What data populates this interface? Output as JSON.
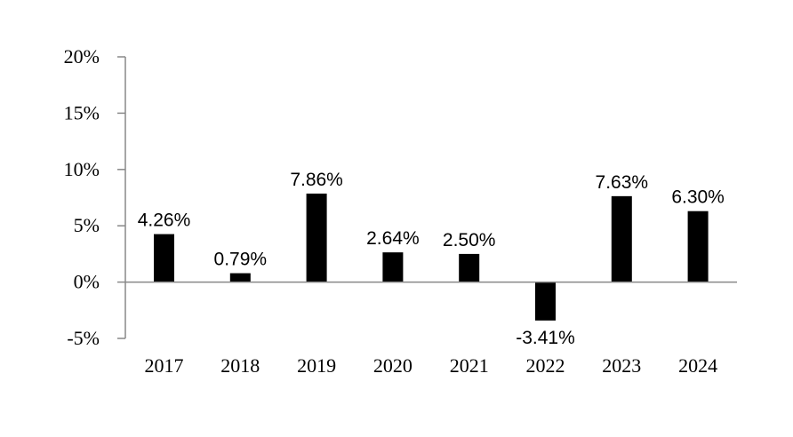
{
  "chart_data": {
    "type": "bar",
    "title": "",
    "xlabel": "",
    "ylabel": "",
    "categories": [
      "2017",
      "2018",
      "2019",
      "2020",
      "2021",
      "2022",
      "2023",
      "2024"
    ],
    "values": [
      4.26,
      0.79,
      7.86,
      2.64,
      2.5,
      -3.41,
      7.63,
      6.3
    ],
    "value_labels": [
      "4.26%",
      "0.79%",
      "7.86%",
      "2.64%",
      "2.50%",
      "-3.41%",
      "7.63%",
      "6.30%"
    ],
    "ylim": [
      -5,
      20
    ],
    "yticks": [
      20,
      15,
      10,
      5,
      0,
      -5
    ],
    "ytick_labels": [
      "20%",
      "15%",
      "10%",
      "5%",
      "0%",
      "-5%"
    ],
    "bar_color": "#000000",
    "grid": false,
    "legend": "none"
  }
}
